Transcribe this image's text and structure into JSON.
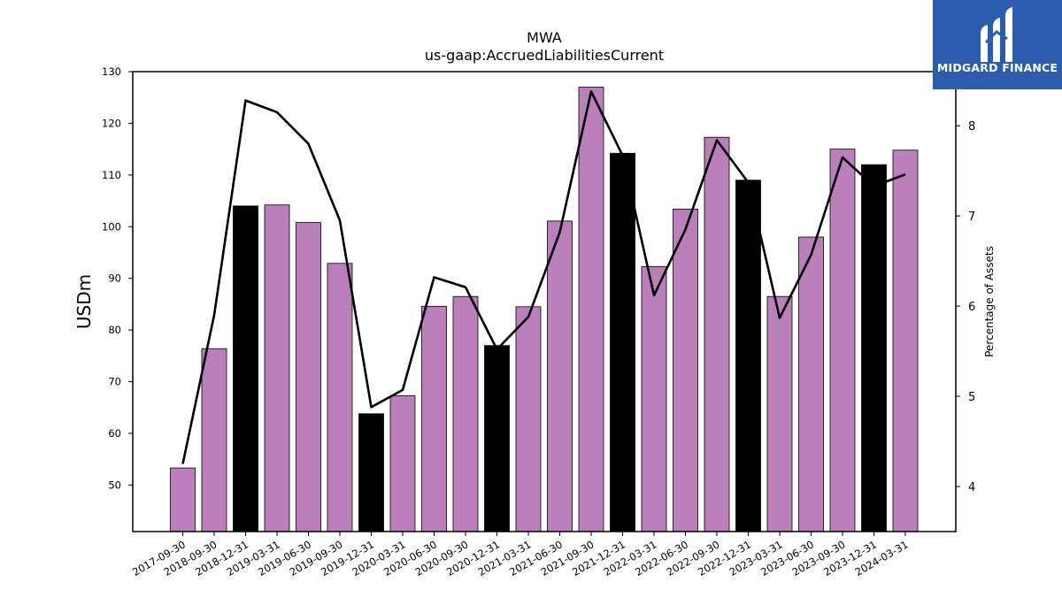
{
  "brand": {
    "name": "MIDGARD FINANCE",
    "background": "#2b5cad"
  },
  "chart_data": {
    "type": "bar",
    "title": "MWA",
    "subtitle": "us-gaap:AccruedLiabilitiesCurrent",
    "ylabel": "USDm",
    "y2label": "Percentage of Assets",
    "ylim": [
      41,
      130
    ],
    "y2lim": [
      3.5,
      8.6
    ],
    "yticks": [
      50,
      60,
      70,
      80,
      90,
      100,
      110,
      120,
      130
    ],
    "y2ticks": [
      4,
      5,
      6,
      7,
      8
    ],
    "colors": {
      "bar": "#bb7fbb",
      "bar_q4": "#000000",
      "line": "#000000"
    },
    "categories": [
      "2017-09-30",
      "2018-09-30",
      "2018-12-31",
      "2019-03-31",
      "2019-06-30",
      "2019-09-30",
      "2019-12-31",
      "2020-03-31",
      "2020-06-30",
      "2020-09-30",
      "2020-12-31",
      "2021-03-31",
      "2021-06-30",
      "2021-09-30",
      "2021-12-31",
      "2022-03-31",
      "2022-06-30",
      "2022-09-30",
      "2022-12-31",
      "2023-03-31",
      "2023-06-30",
      "2023-09-30",
      "2023-12-31",
      "2024-03-31"
    ],
    "values": [
      53.3,
      76.4,
      104.0,
      104.2,
      100.8,
      92.9,
      63.8,
      67.3,
      84.6,
      86.5,
      77.0,
      84.5,
      101.1,
      127.0,
      114.2,
      92.3,
      103.4,
      117.3,
      109.0,
      86.5,
      98.0,
      115.0,
      112.0,
      114.8
    ],
    "highlight": [
      false,
      false,
      true,
      false,
      false,
      false,
      true,
      false,
      false,
      false,
      true,
      false,
      false,
      false,
      true,
      false,
      false,
      false,
      true,
      false,
      false,
      false,
      true,
      false
    ],
    "line_series": {
      "name": "Percentage of Assets",
      "values": [
        4.25,
        5.9,
        8.28,
        8.15,
        7.8,
        6.95,
        4.88,
        5.07,
        6.32,
        6.21,
        5.52,
        5.88,
        6.82,
        8.38,
        7.67,
        6.12,
        6.85,
        7.84,
        7.37,
        5.87,
        6.57,
        7.65,
        7.33,
        7.46
      ]
    },
    "legend": "none",
    "grid": false
  }
}
